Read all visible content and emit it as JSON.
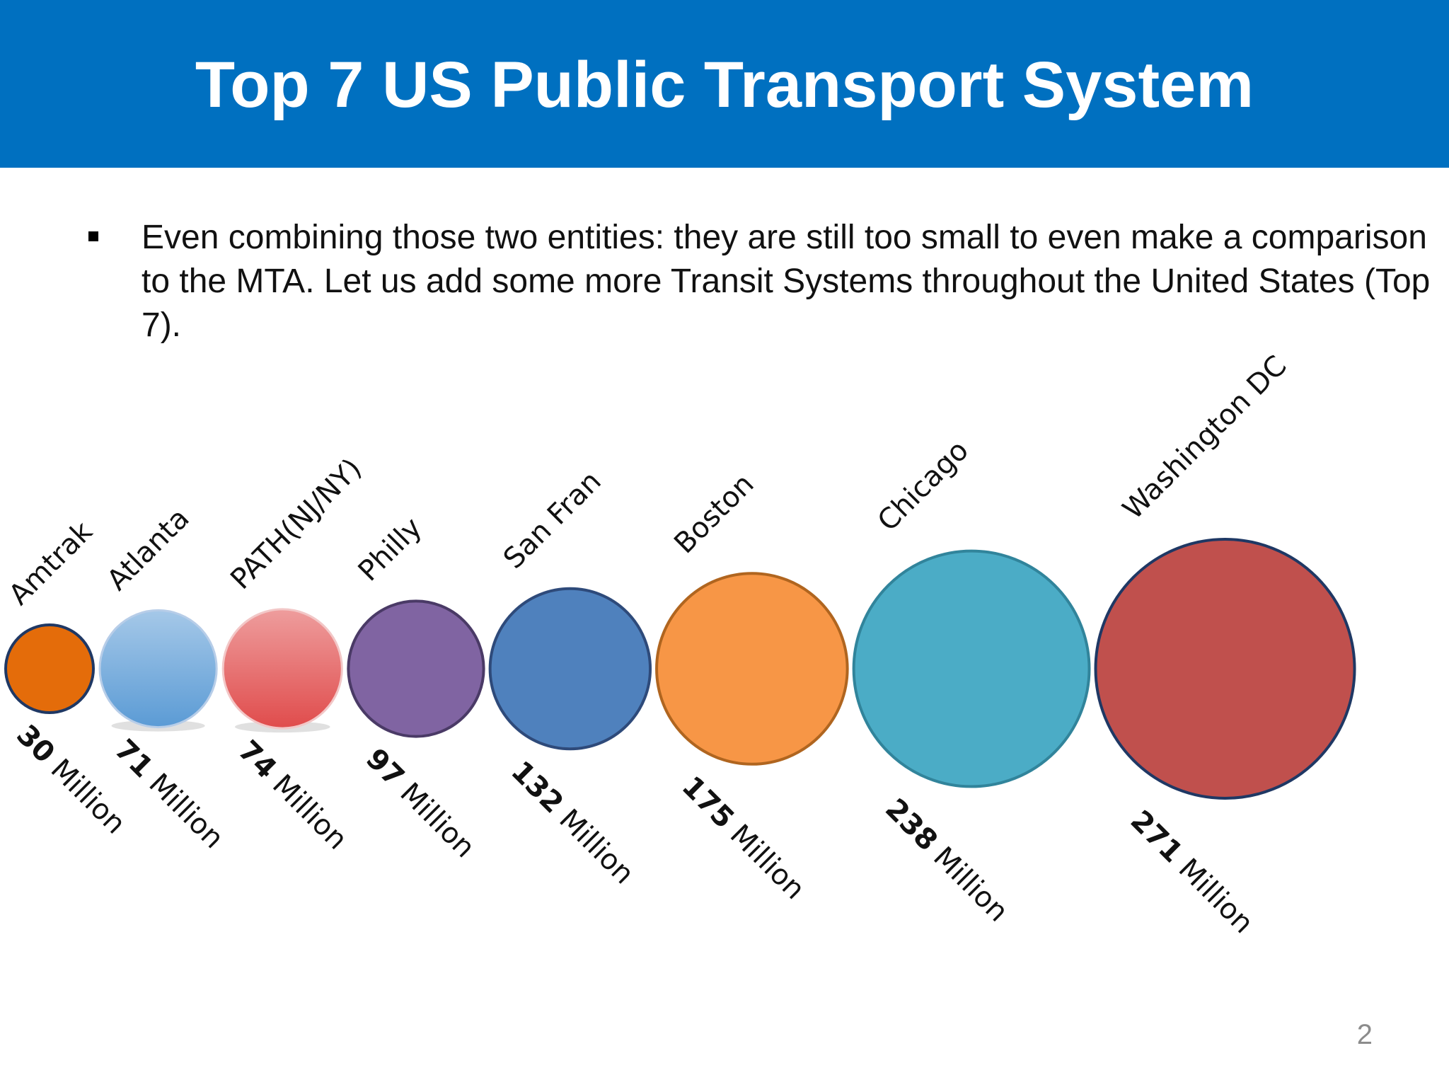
{
  "slide": {
    "title": "Top 7 US Public Transport System",
    "bullet": "Even combining those two entities: they are still too small to even make a comparison to the MTA.  Let us add some more Transit Systems throughout the United States (Top 7).",
    "page_number": "2"
  },
  "colors": {
    "title_bar": "#0070c0",
    "title_text": "#ffffff"
  },
  "chart_data": {
    "type": "bubble",
    "title": "",
    "unit": "Million",
    "categories": [
      "Amtrak",
      "Atlanta",
      "PATH(NJ/NY)",
      "Philly",
      "San Fran",
      "Boston",
      "Chicago",
      "Washington DC"
    ],
    "values": [
      30,
      71,
      74,
      97,
      132,
      175,
      238,
      271
    ],
    "value_labels": [
      {
        "number": "30",
        "unit": "Million"
      },
      {
        "number": "71",
        "unit": "Million"
      },
      {
        "number": "74",
        "unit": "Million"
      },
      {
        "number": "97",
        "unit": "Million"
      },
      {
        "number": "132",
        "unit": "Million"
      },
      {
        "number": "175",
        "unit": "Million"
      },
      {
        "number": "238",
        "unit": "Million"
      },
      {
        "number": "271",
        "unit": "Million"
      }
    ],
    "colors": [
      "#e46c0a",
      "#5b9bd5",
      "#e04c4c",
      "#8064a2",
      "#4f81bd",
      "#f79646",
      "#4bacc6",
      "#c0504d"
    ],
    "stroke_colors": [
      "#1f3864",
      "#b7cde8",
      "#f2c7c7",
      "#4a3a66",
      "#2e4a7a",
      "#b0651f",
      "#31849b",
      "#1f3864"
    ],
    "gradients": [
      false,
      true,
      true,
      false,
      false,
      false,
      false,
      false
    ]
  }
}
